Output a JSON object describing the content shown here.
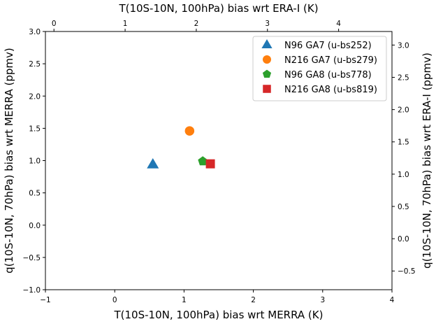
{
  "chart_data": {
    "type": "scatter",
    "xlabel": "T(10S-10N, 100hPa) bias wrt MERRA (K)",
    "ylabel": "q(10S-10N, 70hPa) bias wrt MERRA (ppmv)",
    "xlabel_top": "T(10S-10N, 100hPa) bias wrt ERA-I (K)",
    "ylabel_right": "q(10S-10N, 70hPa) bias wrt ERA-I (ppmv)",
    "xlim": [
      -1,
      4
    ],
    "ylim": [
      -1.0,
      3.0
    ],
    "xlim_top": [
      -0.12,
      4.75
    ],
    "ylim_right": [
      -0.79,
      3.21
    ],
    "xticks": [
      "-1",
      "0",
      "1",
      "2",
      "3",
      "4"
    ],
    "yticks": [
      "-1.0",
      "-0.5",
      "0.0",
      "0.5",
      "1.0",
      "1.5",
      "2.0",
      "2.5",
      "3.0"
    ],
    "xticks_top": [
      "0",
      "1",
      "2",
      "3",
      "4"
    ],
    "yticks_right": [
      "-0.5",
      "0.0",
      "0.5",
      "1.0",
      "1.5",
      "2.0",
      "2.5",
      "3.0"
    ],
    "grid": false,
    "legend_position": "top-right",
    "series": [
      {
        "name": "N96 GA7 (u-bs252)",
        "marker": "triangle",
        "color": "#1f77b4",
        "x": 0.55,
        "y": 0.94
      },
      {
        "name": "N216 GA7 (u-bs279)",
        "marker": "circle",
        "color": "#ff7f0e",
        "x": 1.08,
        "y": 1.46
      },
      {
        "name": "N96 GA8 (u-bs778)",
        "marker": "pentagon",
        "color": "#2ca02c",
        "x": 1.27,
        "y": 0.99
      },
      {
        "name": "N216 GA8 (u-bs819)",
        "marker": "square",
        "color": "#d62728",
        "x": 1.38,
        "y": 0.95
      }
    ]
  }
}
